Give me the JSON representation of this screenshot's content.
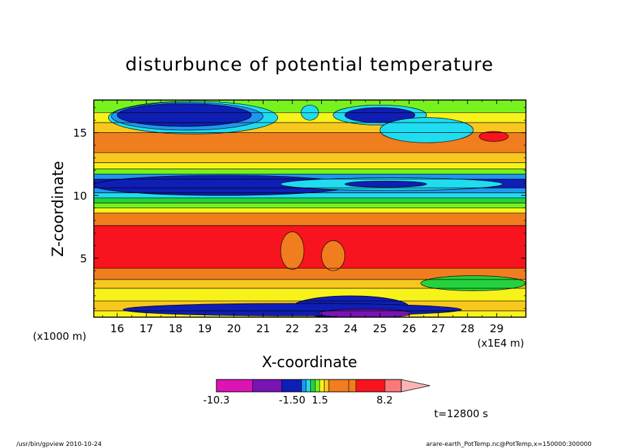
{
  "chart_data": {
    "type": "heatmap",
    "title": "disturbunce of potential temperature",
    "xlabel": "X-coordinate",
    "ylabel": "Z-coordinate",
    "x_unit_left": "(x1000 m)",
    "x_unit_right": "(x1E4 m)",
    "xlim": [
      15.2,
      30.0
    ],
    "ylim": [
      0.3,
      17.6
    ],
    "x_ticks": [
      "16",
      "17",
      "18",
      "19",
      "20",
      "21",
      "22",
      "23",
      "24",
      "25",
      "26",
      "27",
      "28",
      "29"
    ],
    "x_tick_values": [
      16,
      17,
      18,
      19,
      20,
      21,
      22,
      23,
      24,
      25,
      26,
      27,
      28,
      29
    ],
    "y_ticks": [
      "5",
      "10",
      "15"
    ],
    "y_tick_values": [
      5,
      10,
      15
    ],
    "background_color": "#f07d1e",
    "bands": [
      {
        "y": [
          0.3,
          0.8
        ],
        "color": "#f7f21a"
      },
      {
        "y": [
          0.8,
          1.6
        ],
        "color": "#f9c81f"
      },
      {
        "y": [
          1.6,
          2.6
        ],
        "color": "#f7f21a"
      },
      {
        "y": [
          2.6,
          3.3
        ],
        "color": "#f9c81f"
      },
      {
        "y": [
          3.3,
          4.2
        ],
        "color": "#f07d1e"
      },
      {
        "y": [
          4.2,
          7.6
        ],
        "color": "#f7141e"
      },
      {
        "y": [
          7.6,
          8.6
        ],
        "color": "#f07d1e"
      },
      {
        "y": [
          8.6,
          9.0
        ],
        "color": "#f7f21a"
      },
      {
        "y": [
          9.0,
          9.4
        ],
        "color": "#78f21e"
      },
      {
        "y": [
          9.4,
          9.8
        ],
        "color": "#23d23c"
      },
      {
        "y": [
          9.8,
          10.2
        ],
        "color": "#1fdcf0"
      },
      {
        "y": [
          10.2,
          10.6
        ],
        "color": "#1f96f0"
      },
      {
        "y": [
          10.6,
          11.3
        ],
        "color": "#0f1eb4"
      },
      {
        "y": [
          11.3,
          11.7
        ],
        "color": "#1f96f0"
      },
      {
        "y": [
          11.7,
          12.1
        ],
        "color": "#78f21e"
      },
      {
        "y": [
          12.1,
          12.6
        ],
        "color": "#f7f21a"
      },
      {
        "y": [
          12.6,
          13.4
        ],
        "color": "#f9c81f"
      },
      {
        "y": [
          13.4,
          15.0
        ],
        "color": "#f07d1e"
      },
      {
        "y": [
          15.0,
          15.8
        ],
        "color": "#f9c81f"
      },
      {
        "y": [
          15.8,
          16.6
        ],
        "color": "#f7f21a"
      },
      {
        "y": [
          16.6,
          17.6
        ],
        "color": "#78f21e"
      }
    ],
    "blobs": [
      {
        "cx": 18.6,
        "cy": 16.2,
        "rx": 2.9,
        "ry": 1.3,
        "color": "#1fdcf0"
      },
      {
        "cx": 18.4,
        "cy": 16.3,
        "rx": 2.6,
        "ry": 1.1,
        "color": "#1f96f0"
      },
      {
        "cx": 18.3,
        "cy": 16.4,
        "rx": 2.3,
        "ry": 0.9,
        "color": "#0f1eb4"
      },
      {
        "cx": 25.0,
        "cy": 16.4,
        "rx": 1.6,
        "ry": 0.8,
        "color": "#1fdcf0"
      },
      {
        "cx": 25.0,
        "cy": 16.4,
        "rx": 1.2,
        "ry": 0.6,
        "color": "#0f1eb4"
      },
      {
        "cx": 26.6,
        "cy": 15.2,
        "rx": 1.6,
        "ry": 1.0,
        "color": "#1fdcf0"
      },
      {
        "cx": 22.6,
        "cy": 16.6,
        "rx": 0.3,
        "ry": 0.6,
        "color": "#1fdcf0"
      },
      {
        "cx": 28.9,
        "cy": 14.7,
        "rx": 0.5,
        "ry": 0.4,
        "color": "#f7141e"
      },
      {
        "cx": 19.6,
        "cy": 10.8,
        "rx": 4.4,
        "ry": 0.8,
        "color": "#0f1eb4"
      },
      {
        "cx": 25.4,
        "cy": 10.9,
        "rx": 3.8,
        "ry": 0.5,
        "color": "#1fdcf0"
      },
      {
        "cx": 25.2,
        "cy": 10.9,
        "rx": 1.4,
        "ry": 0.25,
        "color": "#0f1eb4"
      },
      {
        "cx": 24.0,
        "cy": 1.1,
        "rx": 2.0,
        "ry": 0.9,
        "color": "#0f1eb4"
      },
      {
        "cx": 22.0,
        "cy": 0.9,
        "rx": 5.8,
        "ry": 0.5,
        "color": "#0f1eb4"
      },
      {
        "cx": 24.5,
        "cy": 0.6,
        "rx": 1.6,
        "ry": 0.35,
        "color": "#7814b4"
      },
      {
        "cx": 28.2,
        "cy": 3.0,
        "rx": 1.8,
        "ry": 0.6,
        "color": "#23d23c"
      },
      {
        "cx": 22.0,
        "cy": 5.6,
        "rx": 0.4,
        "ry": 1.5,
        "color": "#f07d1e"
      },
      {
        "cx": 23.4,
        "cy": 5.2,
        "rx": 0.4,
        "ry": 1.2,
        "color": "#f07d1e"
      }
    ],
    "colorbar": {
      "segments": [
        "#dc14b4",
        "#7814b4",
        "#0f1eb4",
        "#1f96f0",
        "#1fdcf0",
        "#23d23c",
        "#78f21e",
        "#f7f21a",
        "#f9c81f",
        "#f07d1e",
        "#f07d1e",
        "#f7141e",
        "#fa7878",
        "#fab4b4"
      ],
      "weights": [
        2,
        1.6,
        1.1,
        0.25,
        0.25,
        0.25,
        0.25,
        0.25,
        0.25,
        1.1,
        0.4,
        1.6,
        0.9,
        1.3
      ],
      "labels": [
        "-10.3",
        "-1.50",
        "1.5",
        "8.2"
      ],
      "label_positions": [
        0.0,
        0.41,
        0.56,
        0.91
      ]
    },
    "time_label": "t=12800 s"
  },
  "footer": {
    "left": "/usr/bin/gpview   2010-10-24",
    "right": "arare-earth_PotTemp.nc@PotTemp,x=150000:300000"
  }
}
